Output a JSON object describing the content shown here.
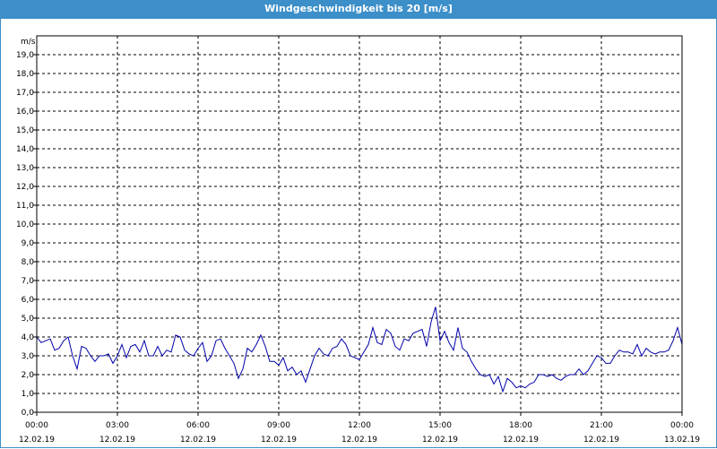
{
  "window": {
    "title": "Windgeschwindigkeit bis 20 [m/s]"
  },
  "chart_data": {
    "type": "line",
    "title": "Windgeschwindigkeit bis 20 [m/s]",
    "ylabel": "m/s",
    "xlabel": "",
    "ylim": [
      0,
      20
    ],
    "xlim_hours": [
      0,
      24
    ],
    "grid": true,
    "yticks": [
      "0,0",
      "1,0",
      "2,0",
      "3,0",
      "4,0",
      "5,0",
      "6,0",
      "7,0",
      "8,0",
      "9,0",
      "10,0",
      "11,0",
      "12,0",
      "13,0",
      "14,0",
      "15,0",
      "16,0",
      "17,0",
      "18,0",
      "19,0"
    ],
    "xticks": [
      {
        "time": "00:00",
        "date": "12.02.19"
      },
      {
        "time": "03:00",
        "date": "12.02.19"
      },
      {
        "time": "06:00",
        "date": "12.02.19"
      },
      {
        "time": "09:00",
        "date": "12.02.19"
      },
      {
        "time": "12:00",
        "date": "12.02.19"
      },
      {
        "time": "15:00",
        "date": "12.02.19"
      },
      {
        "time": "18:00",
        "date": "12.02.19"
      },
      {
        "time": "21:00",
        "date": "12.02.19"
      },
      {
        "time": "00:00",
        "date": "13.02.19"
      }
    ],
    "series": [
      {
        "color": "#0000aa",
        "x": [
          "00:00",
          "00:10",
          "00:20",
          "00:30",
          "00:40",
          "00:50",
          "01:00",
          "01:10",
          "01:20",
          "01:30",
          "01:40",
          "01:50",
          "02:00",
          "02:10",
          "02:20",
          "02:30",
          "02:40",
          "02:50",
          "03:00",
          "03:10",
          "03:20",
          "03:30",
          "03:40",
          "03:50",
          "04:00",
          "04:10",
          "04:20",
          "04:30",
          "04:40",
          "04:50",
          "05:00",
          "05:10",
          "05:20",
          "05:30",
          "05:40",
          "05:50",
          "06:00",
          "06:10",
          "06:20",
          "06:30",
          "06:40",
          "06:50",
          "07:00",
          "07:10",
          "07:20",
          "07:30",
          "07:40",
          "07:50",
          "08:00",
          "08:10",
          "08:20",
          "08:30",
          "08:40",
          "08:50",
          "09:00",
          "09:10",
          "09:20",
          "09:30",
          "09:40",
          "09:50",
          "10:00",
          "10:10",
          "10:20",
          "10:30",
          "10:40",
          "10:50",
          "11:00",
          "11:10",
          "11:20",
          "11:30",
          "11:40",
          "11:50",
          "12:00",
          "12:10",
          "12:20",
          "12:30",
          "12:40",
          "12:50",
          "13:00",
          "13:10",
          "13:20",
          "13:30",
          "13:40",
          "13:50",
          "14:00",
          "14:10",
          "14:20",
          "14:30",
          "14:40",
          "14:50",
          "15:00",
          "15:10",
          "15:20",
          "15:30",
          "15:40",
          "15:50",
          "16:00",
          "16:10",
          "16:20",
          "16:30",
          "16:40",
          "16:50",
          "17:00",
          "17:10",
          "17:20",
          "17:30",
          "17:40",
          "17:50",
          "18:00",
          "18:10",
          "18:20",
          "18:30",
          "18:40",
          "18:50",
          "19:00",
          "19:10",
          "19:20",
          "19:30",
          "19:40",
          "19:50",
          "20:00",
          "20:10",
          "20:20",
          "20:30",
          "20:40",
          "20:50",
          "21:00",
          "21:10",
          "21:20",
          "21:30",
          "21:40",
          "21:50",
          "22:00",
          "22:10",
          "22:20",
          "22:30",
          "22:40",
          "22:50",
          "23:00",
          "23:10",
          "23:20",
          "23:30",
          "23:40",
          "23:50",
          "24:00"
        ],
        "values": [
          4.0,
          3.7,
          3.8,
          3.9,
          3.3,
          3.4,
          3.8,
          4.0,
          3.0,
          2.3,
          3.5,
          3.4,
          3.0,
          2.7,
          3.0,
          3.0,
          3.1,
          2.6,
          3.0,
          3.6,
          2.9,
          3.5,
          3.6,
          3.2,
          3.8,
          3.0,
          3.0,
          3.5,
          3.0,
          3.3,
          3.2,
          4.1,
          4.0,
          3.3,
          3.1,
          3.0,
          3.4,
          3.7,
          2.7,
          3.0,
          3.8,
          3.9,
          3.4,
          3.0,
          2.6,
          1.8,
          2.3,
          3.4,
          3.2,
          3.6,
          4.1,
          3.5,
          2.7,
          2.7,
          2.5,
          2.9,
          2.2,
          2.4,
          2.0,
          2.2,
          1.6,
          2.3,
          3.0,
          3.4,
          3.1,
          3.0,
          3.4,
          3.5,
          3.9,
          3.6,
          3.0,
          2.9,
          2.8,
          3.2,
          3.6,
          4.5,
          3.7,
          3.6,
          4.4,
          4.2,
          3.5,
          3.3,
          3.9,
          3.8,
          4.2,
          4.3,
          4.4,
          3.5,
          4.8,
          5.6,
          3.8,
          4.3,
          3.7,
          3.3,
          4.5,
          3.4,
          3.2,
          2.7,
          2.3,
          2.0,
          1.9,
          2.0,
          1.5,
          1.9,
          1.1,
          1.8,
          1.6,
          1.3,
          1.4,
          1.3,
          1.5,
          1.6,
          2.0,
          2.0,
          1.9,
          2.0,
          1.8,
          1.7,
          1.9,
          2.0,
          2.0,
          2.3,
          2.0,
          2.2,
          2.6,
          3.0,
          2.9,
          2.6,
          2.6,
          3.0,
          3.3,
          3.2,
          3.2,
          3.1,
          3.6,
          3.0,
          3.4,
          3.2,
          3.1,
          3.2,
          3.2,
          3.3,
          3.8,
          4.5,
          3.6
        ]
      }
    ]
  }
}
